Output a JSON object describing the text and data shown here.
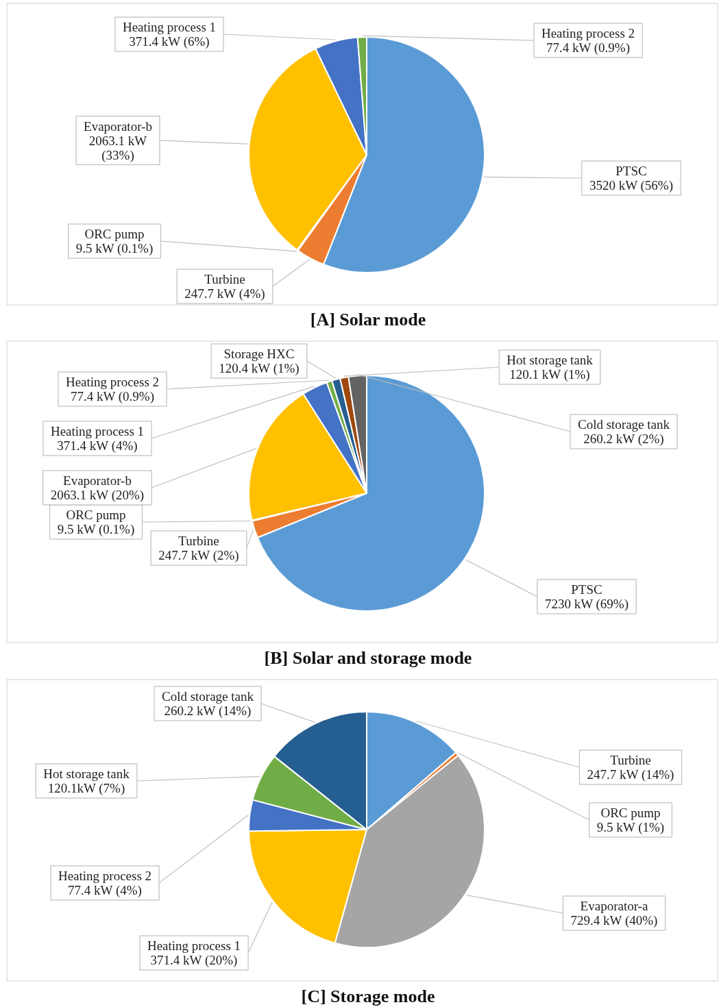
{
  "chart_data": [
    {
      "type": "pie",
      "title": "[A] Solar mode",
      "categories": [
        "PTSC",
        "Turbine",
        "ORC pump",
        "Evaporator-b",
        "Heating process 1",
        "Heating process 2"
      ],
      "values": [
        3520,
        247.7,
        9.5,
        2063.1,
        371.4,
        77.4
      ],
      "colors": [
        "#5b9bd5",
        "#ed7d31",
        "#a5a5a5",
        "#ffc000",
        "#4472c4",
        "#70ad47"
      ],
      "value_labels": [
        "3520 kW (56%)",
        "247.7 kW (4%)",
        "9.5 kW (0.1%)",
        "2063.1 kW (33%)",
        "371.4 kW (6%)",
        "77.4 kW (0.9%)"
      ]
    },
    {
      "type": "pie",
      "title": "[B] Solar and storage mode",
      "categories": [
        "PTSC",
        "Turbine",
        "ORC pump",
        "Evaporator-b",
        "Heating process 1",
        "Heating process 2",
        "Storage HXC",
        "Hot storage tank",
        "Cold storage tank"
      ],
      "values": [
        7230,
        247.7,
        9.5,
        2063.1,
        371.4,
        77.4,
        120.4,
        120.1,
        260.2
      ],
      "colors": [
        "#5b9bd5",
        "#ed7d31",
        "#a5a5a5",
        "#ffc000",
        "#4472c4",
        "#70ad47",
        "#255e91",
        "#9e480e",
        "#636363"
      ],
      "value_labels": [
        "7230 kW (69%)",
        "247.7 kW (2%)",
        "9.5 kW (0.1%)",
        "2063.1 kW (20%)",
        "371.4 kW (4%)",
        "77.4 kW (0.9%)",
        "120.4 kW (1%)",
        "120.1 kW (1%)",
        "260.2 kW (2%)"
      ]
    },
    {
      "type": "pie",
      "title": "[C] Storage mode",
      "categories": [
        "Turbine",
        "ORC pump",
        "Evaporator-a",
        "Heating process 1",
        "Heating process 2",
        "Hot storage tank",
        "Cold storage tank"
      ],
      "values": [
        247.7,
        9.5,
        729.4,
        371.4,
        77.4,
        120.1,
        260.2
      ],
      "colors": [
        "#5b9bd5",
        "#ed7d31",
        "#a5a5a5",
        "#ffc000",
        "#4472c4",
        "#70ad47",
        "#255e91"
      ],
      "value_labels": [
        "247.7 kW (14%)",
        "9.5 kW (1%)",
        "729.4 kW (40%)",
        "371.4 kW (20%)",
        "77.4 kW (4%)",
        "120.1kW (7%)",
        "260.2 kW (14%)"
      ]
    }
  ]
}
